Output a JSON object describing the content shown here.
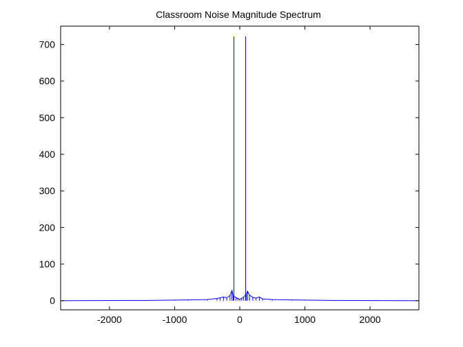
{
  "chart_data": {
    "type": "line",
    "title": "Classroom Noise Magnitude Spectrum",
    "xlabel": "",
    "ylabel": "",
    "xlim": [
      -2750,
      2750
    ],
    "ylim": [
      -25,
      750
    ],
    "x_ticks": [
      -2000,
      -1000,
      0,
      1000,
      2000
    ],
    "y_ticks": [
      0,
      100,
      200,
      300,
      400,
      500,
      600,
      700
    ],
    "grid": false,
    "box": true,
    "colors": {
      "line": "#0000ff",
      "axes": "#000000",
      "background": "#ffffff"
    },
    "series": [
      {
        "peaks": [
          {
            "x": -90,
            "y": 722
          },
          {
            "x": 90,
            "y": 722
          }
        ],
        "noise_floor": [
          {
            "x": -2750,
            "y": 0
          },
          {
            "x": -1400,
            "y": 0.5
          },
          {
            "x": -1000,
            "y": 1.5
          },
          {
            "x": -800,
            "y": 2
          },
          {
            "x": -500,
            "y": 3
          },
          {
            "x": -350,
            "y": 6
          },
          {
            "x": -300,
            "y": 8
          },
          {
            "x": -250,
            "y": 10
          },
          {
            "x": -200,
            "y": 8
          },
          {
            "x": -150,
            "y": 14
          },
          {
            "x": -120,
            "y": 28
          },
          {
            "x": -100,
            "y": 12
          },
          {
            "x": -60,
            "y": 9
          },
          {
            "x": -30,
            "y": 6
          },
          {
            "x": 0,
            "y": 4
          },
          {
            "x": 30,
            "y": 7
          },
          {
            "x": 60,
            "y": 10
          },
          {
            "x": 100,
            "y": 18
          },
          {
            "x": 120,
            "y": 26
          },
          {
            "x": 150,
            "y": 15
          },
          {
            "x": 200,
            "y": 9
          },
          {
            "x": 250,
            "y": 7
          },
          {
            "x": 300,
            "y": 10
          },
          {
            "x": 350,
            "y": 5
          },
          {
            "x": 500,
            "y": 3
          },
          {
            "x": 800,
            "y": 2
          },
          {
            "x": 1000,
            "y": 1.5
          },
          {
            "x": 1400,
            "y": 0.5
          },
          {
            "x": 2750,
            "y": 0
          }
        ]
      }
    ]
  }
}
